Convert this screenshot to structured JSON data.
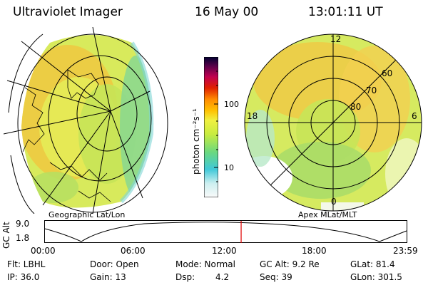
{
  "header": {
    "instrument": "Ultraviolet Imager",
    "date": "16 May 00",
    "time": "13:01:11 UT"
  },
  "left_panel": {
    "caption": "Geographic Lat/Lon"
  },
  "right_panel": {
    "caption": "Apex MLat/MLT",
    "mlt_labels": [
      "12",
      "18",
      "6",
      "0"
    ],
    "lat_labels": [
      "60",
      "70",
      "80"
    ]
  },
  "colorbar": {
    "unit_label": "photon cm⁻²s⁻¹",
    "ticks": [
      "100",
      "10"
    ],
    "colors": [
      "#fafafa",
      "#d0f0f0",
      "#58c8d8",
      "#38d0b0",
      "#9ae060",
      "#e8f040",
      "#ffb800",
      "#ff8800",
      "#e03000",
      "#c00060",
      "#7a0060",
      "#000040"
    ]
  },
  "timeline": {
    "ylabel": "GC Alt",
    "y_ticks": [
      "9.0",
      "1.8"
    ],
    "x_ticks": [
      "00:00",
      "06:00",
      "12:00",
      "18:00",
      "23:59"
    ],
    "current_fraction": 0.5425
  },
  "info": {
    "row1": {
      "flt": "Flt: LBHL",
      "door": "Door: Open",
      "mode": "Mode: Normal",
      "gcalt": "GC Alt: 9.2 Re",
      "glat": "GLat: 81.4"
    },
    "row2": {
      "ip": "IP: 36.0",
      "gain": "Gain: 13",
      "dsp_label": "Dsp:",
      "dsp_value": "4.2",
      "seq": "Seq: 39",
      "glon": "GLon: 301.5"
    }
  }
}
